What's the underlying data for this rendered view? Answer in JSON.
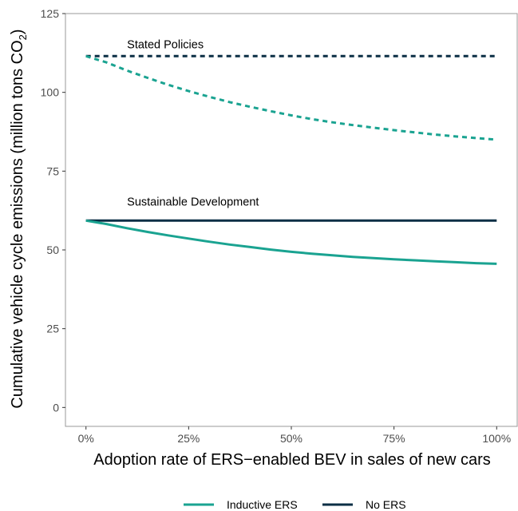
{
  "chart_data": {
    "type": "line",
    "title": "",
    "xlabel": "Adoption rate of ERS−enabled BEV in sales of new cars",
    "ylabel_main": "Cumulative vehicle cycle emissions (million tons CO",
    "ylabel_subscript": "2",
    "ylabel_close": ")",
    "x_ticks": [
      "0%",
      "25%",
      "50%",
      "75%",
      "100%"
    ],
    "y_ticks": [
      "0",
      "25",
      "50",
      "75",
      "100",
      "125"
    ],
    "xlim": [
      -0.05,
      1.05
    ],
    "ylim": [
      -6,
      125
    ],
    "x_tick_values": [
      0,
      0.25,
      0.5,
      0.75,
      1.0
    ],
    "y_tick_values": [
      0,
      25,
      50,
      75,
      100,
      125
    ],
    "grid": false,
    "legend_position": "bottom",
    "annotations": [
      {
        "text": "Stated Policies",
        "x": 0.1,
        "y": 114
      },
      {
        "text": "Sustainable Development",
        "x": 0.1,
        "y": 64
      }
    ],
    "series": [
      {
        "name": "No ERS",
        "scenario": "Stated Policies",
        "color": "#0b2f45",
        "dash": true,
        "x": [
          0,
          0.25,
          0.5,
          0.75,
          1.0
        ],
        "y": [
          111.5,
          111.5,
          111.5,
          111.5,
          111.5
        ]
      },
      {
        "name": "Inductive ERS",
        "scenario": "Stated Policies",
        "color": "#1aa391",
        "dash": true,
        "x": [
          0,
          0.05,
          0.1,
          0.15,
          0.2,
          0.25,
          0.3,
          0.35,
          0.4,
          0.45,
          0.5,
          0.55,
          0.6,
          0.65,
          0.7,
          0.75,
          0.8,
          0.85,
          0.9,
          0.95,
          1.0
        ],
        "y": [
          111.5,
          109.5,
          106.9,
          104.6,
          102.4,
          100.4,
          98.6,
          96.9,
          95.4,
          94.0,
          92.7,
          91.5,
          90.5,
          89.6,
          88.8,
          88.0,
          87.3,
          86.6,
          86.0,
          85.5,
          85.0
        ]
      },
      {
        "name": "No ERS",
        "scenario": "Sustainable Development",
        "color": "#0b2f45",
        "dash": false,
        "x": [
          0,
          0.25,
          0.5,
          0.75,
          1.0
        ],
        "y": [
          59.3,
          59.3,
          59.3,
          59.3,
          59.3
        ]
      },
      {
        "name": "Inductive ERS",
        "scenario": "Sustainable Development",
        "color": "#1aa391",
        "dash": false,
        "x": [
          0,
          0.05,
          0.1,
          0.15,
          0.2,
          0.25,
          0.3,
          0.35,
          0.4,
          0.45,
          0.5,
          0.55,
          0.6,
          0.65,
          0.7,
          0.75,
          0.8,
          0.85,
          0.9,
          0.95,
          1.0
        ],
        "y": [
          59.3,
          58.2,
          56.9,
          55.7,
          54.6,
          53.6,
          52.6,
          51.7,
          50.9,
          50.1,
          49.4,
          48.8,
          48.3,
          47.8,
          47.4,
          47.0,
          46.7,
          46.4,
          46.1,
          45.8,
          45.6
        ]
      }
    ],
    "legend": [
      {
        "label": "Inductive ERS",
        "color": "#1aa391"
      },
      {
        "label": "No ERS",
        "color": "#0b2f45"
      }
    ]
  }
}
